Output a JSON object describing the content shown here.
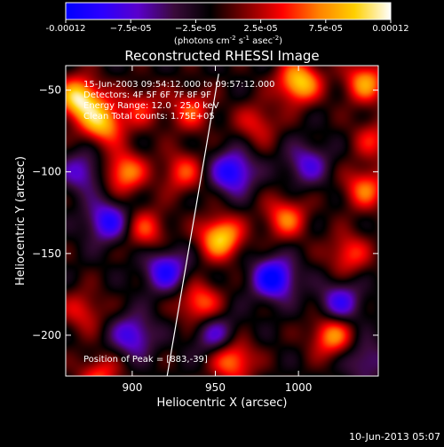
{
  "chart_data": {
    "type": "heatmap",
    "title": "Reconstructed RHESSI Image",
    "xlabel": "Heliocentric X (arcsec)",
    "ylabel": "Heliocentric Y (arcsec)",
    "x_ticks": [
      900,
      950,
      1000
    ],
    "y_ticks": [
      -50,
      -100,
      -150,
      -200
    ],
    "xlim": [
      860,
      1048
    ],
    "ylim": [
      -225,
      -35
    ],
    "colorbar": {
      "min": -0.00012,
      "max": 0.00012,
      "tick_labels": [
        "-0.00012",
        "−7.5e-05",
        "−2.5e-05",
        "2.5e-05",
        "7.5e-05",
        "0.00012"
      ],
      "units_prefix": "(photons cm",
      "units_exp1": "-2",
      "units_mid": " s",
      "units_exp2": "-1",
      "units_mid2": " asec",
      "units_exp3": "-2",
      "units_suffix": ")",
      "colormap": [
        "#0000ff",
        "#2a00ff",
        "#5a00cc",
        "#3a0a3a",
        "#000000",
        "#800000",
        "#ff0000",
        "#ff8000",
        "#ffd000",
        "#ffffff"
      ]
    },
    "annotations": [
      "15-Jun-2003 09:54:12.000 to 09:57:12.000",
      "Detectors: 4F 5F 6F 7F 8F 9F",
      "Energy Range: 12.0 - 25.0 keV",
      "Clean     Total counts: 1.75E+05"
    ],
    "peak_label": "Position of Peak = [883,-39]",
    "peak": [
      883,
      -39
    ],
    "limb_line": [
      [
        921,
        -225
      ],
      [
        952,
        -40
      ]
    ],
    "sources": [
      {
        "x": 868,
        "y": -55,
        "amp": 1.0
      },
      {
        "x": 882,
        "y": -70,
        "amp": 0.8
      },
      {
        "x": 895,
        "y": -100,
        "amp": 0.7
      },
      {
        "x": 908,
        "y": -135,
        "amp": 0.5
      },
      {
        "x": 905,
        "y": -60,
        "amp": 0.4
      },
      {
        "x": 935,
        "y": -62,
        "amp": 0.5
      },
      {
        "x": 953,
        "y": -140,
        "amp": 0.9
      },
      {
        "x": 930,
        "y": -100,
        "amp": 0.5
      },
      {
        "x": 1000,
        "y": -45,
        "amp": 0.9
      },
      {
        "x": 1040,
        "y": -45,
        "amp": 0.7
      },
      {
        "x": 992,
        "y": -128,
        "amp": 0.6
      },
      {
        "x": 1040,
        "y": -110,
        "amp": 0.6
      },
      {
        "x": 1030,
        "y": -150,
        "amp": 0.5
      },
      {
        "x": 1020,
        "y": -200,
        "amp": 0.7
      },
      {
        "x": 940,
        "y": -180,
        "amp": 0.6
      },
      {
        "x": 960,
        "y": -215,
        "amp": 0.7
      },
      {
        "x": 880,
        "y": -225,
        "amp": 0.5
      },
      {
        "x": 870,
        "y": -185,
        "amp": 0.4
      },
      {
        "x": 975,
        "y": -70,
        "amp": 0.4
      },
      {
        "x": 1045,
        "y": -80,
        "amp": 0.4
      },
      {
        "x": 885,
        "y": -130,
        "amp": -0.7
      },
      {
        "x": 960,
        "y": -100,
        "amp": -0.8
      },
      {
        "x": 985,
        "y": -165,
        "amp": -0.9
      },
      {
        "x": 1025,
        "y": -180,
        "amp": -0.6
      },
      {
        "x": 920,
        "y": -160,
        "amp": -0.7
      },
      {
        "x": 1005,
        "y": -95,
        "amp": -0.5
      },
      {
        "x": 900,
        "y": -200,
        "amp": -0.6
      },
      {
        "x": 950,
        "y": -200,
        "amp": -0.5
      },
      {
        "x": 870,
        "y": -100,
        "amp": -0.5
      },
      {
        "x": 1040,
        "y": -215,
        "amp": -0.4
      }
    ]
  },
  "footer": {
    "timestamp": "10-Jun-2013 05:07"
  }
}
